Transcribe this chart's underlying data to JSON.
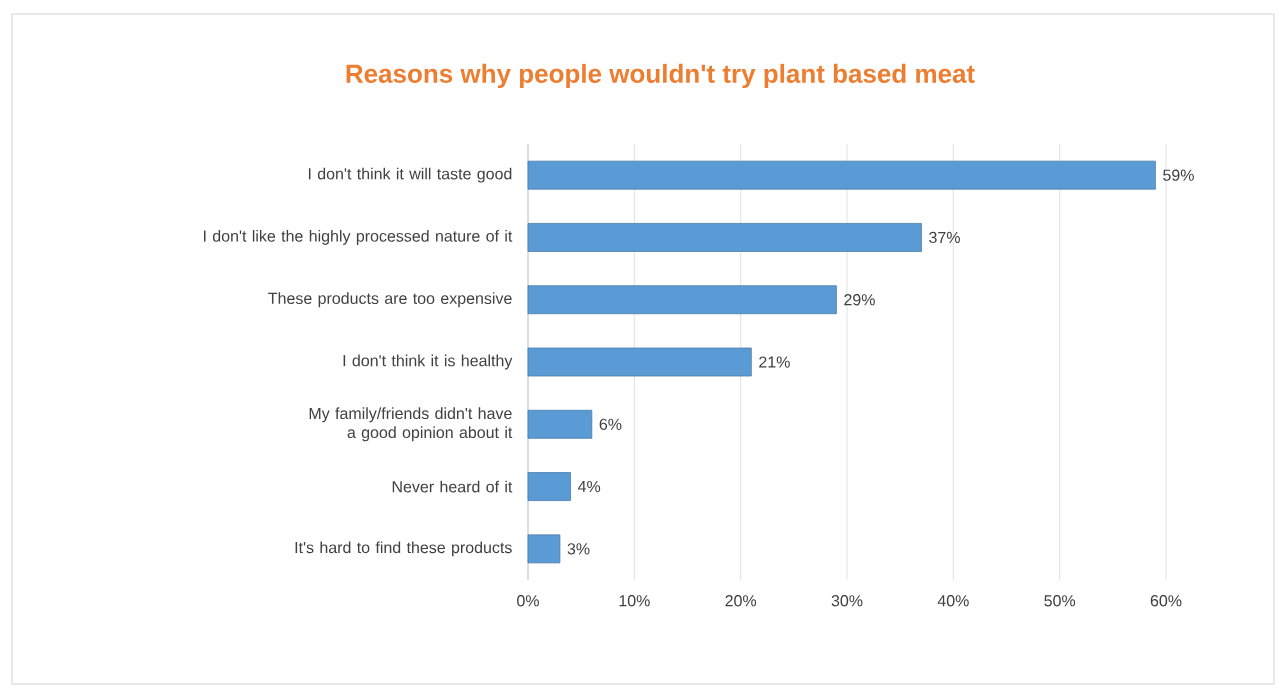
{
  "chart_data": {
    "type": "bar",
    "orientation": "horizontal",
    "title": "Reasons why people wouldn't try plant based meat",
    "categories": [
      "I don't think it will taste good",
      "I don't like the highly processed nature of it",
      "These products are too expensive",
      "I don't think it is healthy",
      "My family/friends didn't have a good opinion about it",
      "Never heard of it",
      "It's hard to find these products"
    ],
    "values": [
      59,
      37,
      29,
      21,
      6,
      4,
      3
    ],
    "value_labels": [
      "59%",
      "37%",
      "29%",
      "21%",
      "6%",
      "4%",
      "3%"
    ],
    "color": "#5b9bd5",
    "xlim": [
      0,
      60
    ],
    "xticks": [
      {
        "value": 0,
        "label": "0%"
      },
      {
        "value": 10,
        "label": "10%"
      },
      {
        "value": 20,
        "label": "20%"
      },
      {
        "value": 30,
        "label": "30%"
      },
      {
        "value": 40,
        "label": "40%"
      },
      {
        "value": 50,
        "label": "50%"
      },
      {
        "value": 60,
        "label": "60%"
      }
    ],
    "grid": "x"
  }
}
